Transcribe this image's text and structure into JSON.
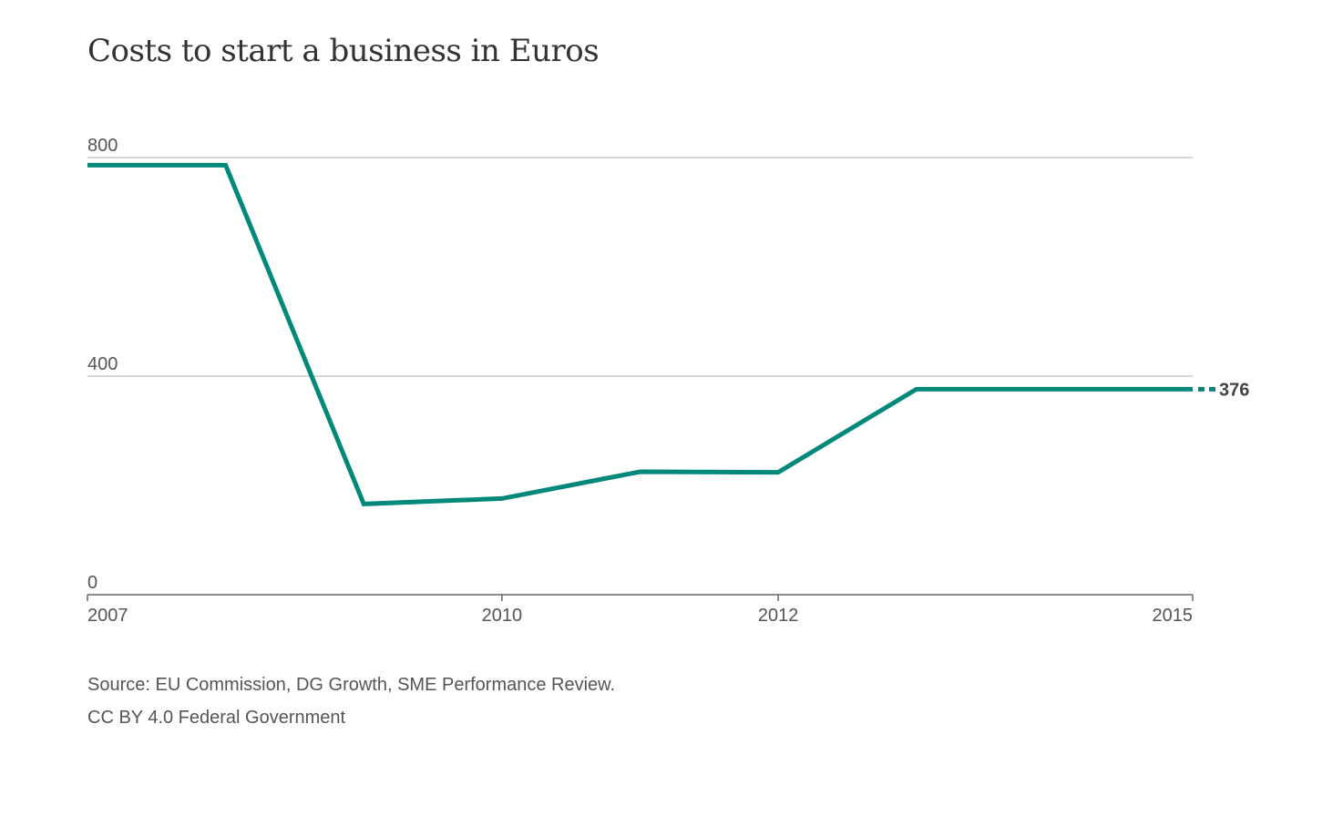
{
  "chart_data": {
    "type": "line",
    "title": "Costs to start a business in Euros",
    "xlabel": "",
    "ylabel": "",
    "x": [
      2007,
      2008,
      2009,
      2010,
      2011,
      2012,
      2013,
      2014,
      2015
    ],
    "series": [
      {
        "values": [
          786,
          786,
          166,
          176,
          225,
          224,
          376,
          376,
          376
        ]
      }
    ],
    "xlim": [
      2007,
      2015
    ],
    "ylim": [
      0,
      800
    ],
    "y_ticks": [
      "0",
      "400",
      "800"
    ],
    "x_ticks": [
      "2007",
      "2010",
      "2012",
      "2015"
    ],
    "end_label": "376",
    "grid": true,
    "legend": "none",
    "colors": {
      "line": "#00897b",
      "grid": "#cccccc",
      "axis": "#666666"
    }
  },
  "footer": {
    "source": "Source: EU Commission, DG Growth, SME Performance Review.",
    "license": "CC BY 4.0 Federal Government"
  }
}
